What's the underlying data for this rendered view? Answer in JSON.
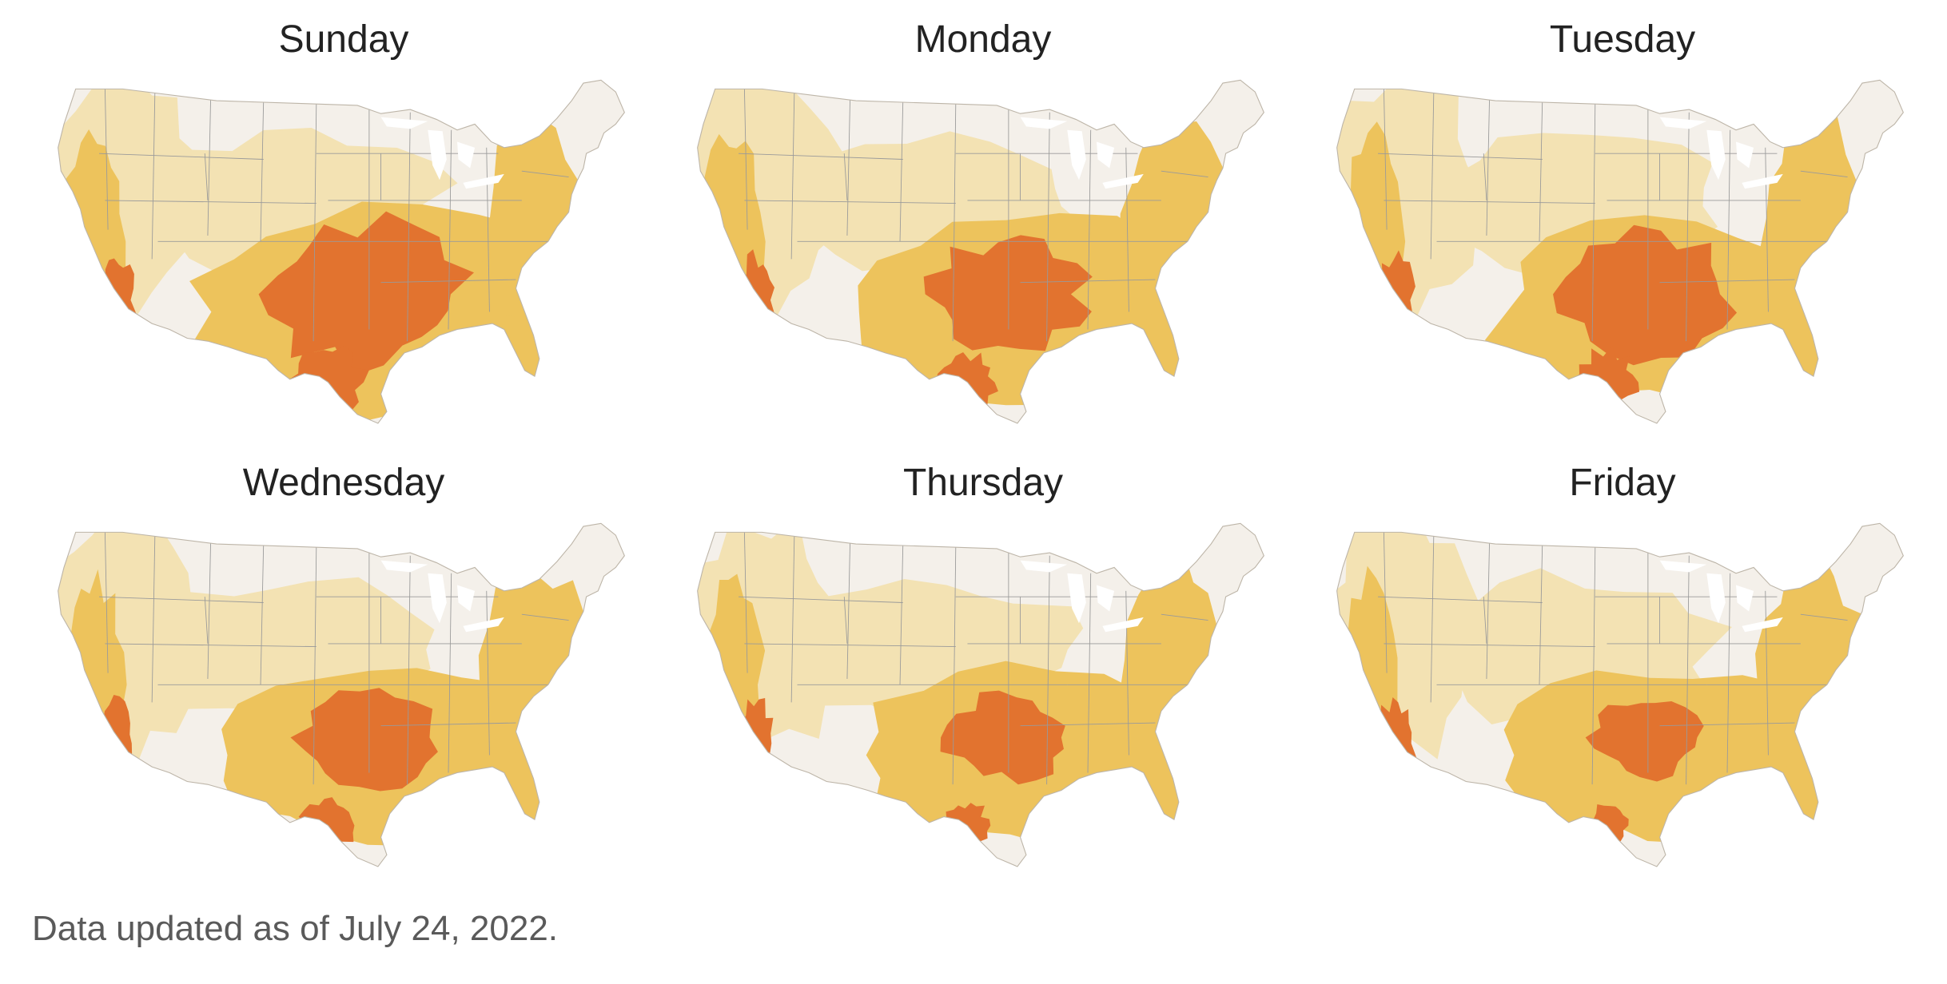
{
  "panels": [
    {
      "day": "Sunday",
      "severe_intensity": 1.0,
      "moderate_intensity": 1.0
    },
    {
      "day": "Monday",
      "severe_intensity": 0.75,
      "moderate_intensity": 0.95
    },
    {
      "day": "Tuesday",
      "severe_intensity": 0.85,
      "moderate_intensity": 0.9
    },
    {
      "day": "Wednesday",
      "severe_intensity": 0.7,
      "moderate_intensity": 0.9
    },
    {
      "day": "Thursday",
      "severe_intensity": 0.6,
      "moderate_intensity": 0.9
    },
    {
      "day": "Friday",
      "severe_intensity": 0.55,
      "moderate_intensity": 0.85
    }
  ],
  "footnote": "Data updated as of July 24, 2022.",
  "colors": {
    "land": "#f4f0ea",
    "light": "#f3e2b3",
    "moderate": "#edc35c",
    "severe": "#e2732f",
    "border": "#9a9a9a"
  }
}
